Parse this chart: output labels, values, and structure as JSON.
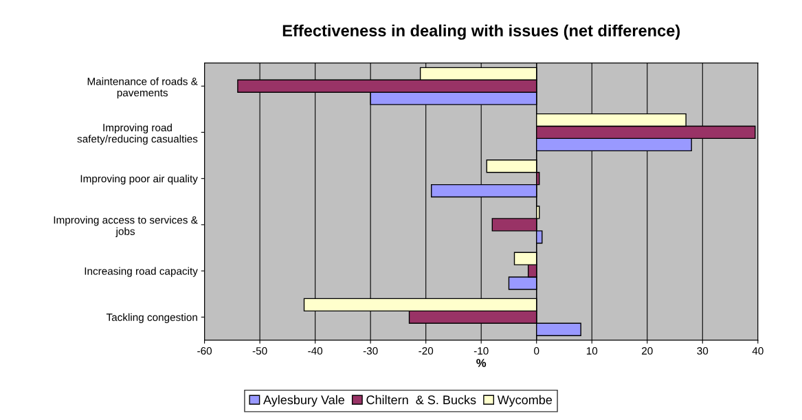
{
  "chart_data": {
    "type": "bar",
    "orientation": "horizontal",
    "title": "Effectiveness in dealing with issues (net difference)",
    "xlabel": "%",
    "categories": [
      "Maintenance of roads &\npavements",
      "Improving road\nsafety/reducing casualties",
      "Improving poor air quality",
      "Improving access to services &\njobs",
      "Increasing road capacity",
      "Tackling congestion"
    ],
    "series": [
      {
        "name": "Aylesbury Vale",
        "color": "#9999ff",
        "values": [
          -30,
          28,
          -19,
          1,
          -5,
          8
        ]
      },
      {
        "name": "Chiltern  & S. Bucks",
        "color": "#993366",
        "values": [
          -54,
          39.5,
          0.5,
          -8,
          -1.5,
          -23
        ]
      },
      {
        "name": "Wycombe",
        "color": "#ffffcc",
        "values": [
          -21,
          27,
          -9,
          0.5,
          -4,
          -42
        ]
      }
    ],
    "xlim": [
      -60,
      40
    ],
    "xticks": [
      -60,
      -50,
      -40,
      -30,
      -20,
      -10,
      0,
      10,
      20,
      30,
      40
    ],
    "grid": "x",
    "legend": "bottom"
  }
}
